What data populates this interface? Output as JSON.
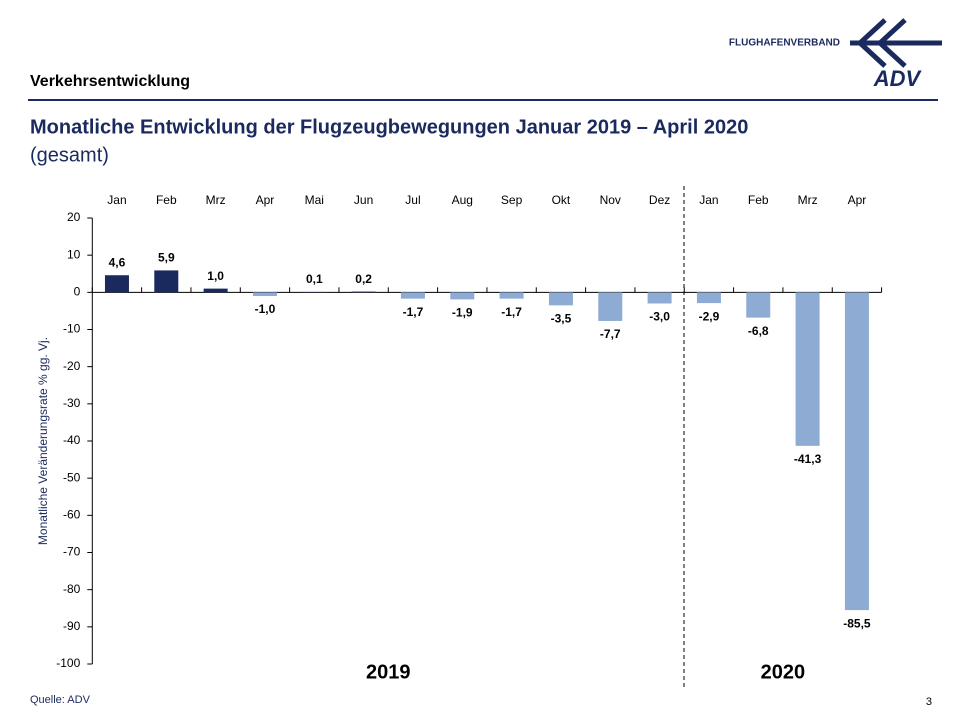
{
  "header": {
    "section": "Verkehrsentwicklung",
    "title": "Monatliche Entwicklung der Flugzeugbewegungen Januar 2019 – April 2020",
    "subtitle": "(gesamt)",
    "logo_text": "FLUGHAFENVERBAND",
    "logo_abbr": "ADV"
  },
  "chart_data": {
    "type": "bar",
    "categories": [
      "Jan",
      "Feb",
      "Mrz",
      "Apr",
      "Mai",
      "Jun",
      "Jul",
      "Aug",
      "Sep",
      "Okt",
      "Nov",
      "Dez",
      "Jan",
      "Feb",
      "Mrz",
      "Apr"
    ],
    "values": [
      4.6,
      5.9,
      1.0,
      -1.0,
      0.1,
      0.2,
      -1.7,
      -1.9,
      -1.7,
      -3.5,
      -7.7,
      -3.0,
      -2.9,
      -6.8,
      -41.3,
      -85.5
    ],
    "value_labels": [
      "4,6",
      "5,9",
      "1,0",
      "-1,0",
      "0,1",
      "0,2",
      "-1,7",
      "-1,9",
      "-1,7",
      "-3,5",
      "-7,7",
      "-3,0",
      "-2,9",
      "-6,8",
      "-41,3",
      "-85,5"
    ],
    "color_positive": "#1b2a5e",
    "color_negative": "#8eabd3",
    "ylabel": "Monatliche Veränderungsrate % gg. Vj.",
    "ylim": [
      -100,
      20
    ],
    "yticks": [
      -100,
      -90,
      -80,
      -70,
      -60,
      -50,
      -40,
      -30,
      -20,
      -10,
      0,
      10,
      20
    ],
    "grid": false,
    "year_labels": [
      "2019",
      "2020"
    ]
  },
  "footer": {
    "source": "Quelle: ADV",
    "page": "3"
  }
}
